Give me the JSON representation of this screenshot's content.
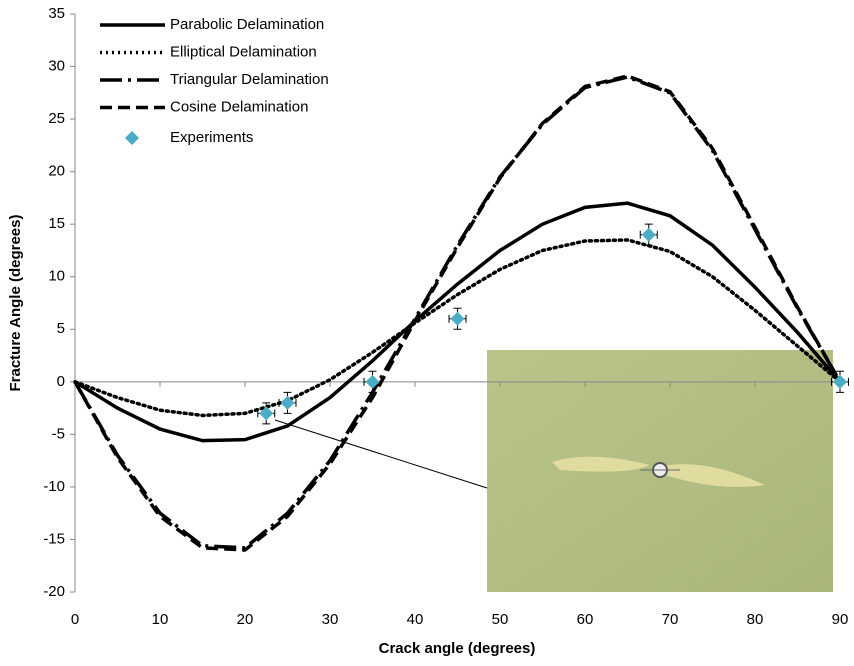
{
  "chart_data": {
    "type": "line",
    "x_label": "Crack  angle (degrees)",
    "y_label": "Fracture Angle (degrees)",
    "x": [
      0,
      5,
      10,
      15,
      20,
      25,
      30,
      35,
      40,
      45,
      50,
      55,
      60,
      65,
      70,
      75,
      80,
      85,
      90
    ],
    "series": [
      {
        "name": "Parabolic Delamination",
        "color": "#000000",
        "dash": "solid",
        "values": [
          0,
          -2.5,
          -4.5,
          -5.6,
          -5.5,
          -4.2,
          -1.5,
          2,
          5.8,
          9.3,
          12.5,
          15,
          16.6,
          17,
          15.8,
          13,
          9,
          4.7,
          0
        ]
      },
      {
        "name": "Elliptical Delamination",
        "color": "#000000",
        "dash": "dot",
        "values": [
          0,
          -1.5,
          -2.7,
          -3.2,
          -3,
          -1.8,
          0.2,
          2.8,
          5.6,
          8.3,
          10.7,
          12.5,
          13.4,
          13.5,
          12.4,
          10,
          6.8,
          3.4,
          0
        ]
      },
      {
        "name": "Triangular Delamination",
        "color": "#000000",
        "dash": "dashdot",
        "values": [
          0,
          -7,
          -12.5,
          -15.6,
          -15.8,
          -12.5,
          -7.5,
          -1,
          6,
          13,
          19.5,
          24.5,
          28,
          29,
          27.5,
          22,
          14.5,
          7,
          0
        ]
      },
      {
        "name": "Cosine Delamination",
        "color": "#000000",
        "dash": "dash",
        "values": [
          0,
          -7.2,
          -12.8,
          -15.8,
          -16,
          -12.8,
          -7.8,
          -1.5,
          5.8,
          12.8,
          19.4,
          24.6,
          28.1,
          29.1,
          27.6,
          22.2,
          14.7,
          7.1,
          0
        ]
      }
    ],
    "points": {
      "name": "Experiments",
      "color": "#4bacc6",
      "x": [
        22.5,
        25,
        35,
        45,
        67.5,
        90
      ],
      "values": [
        -3,
        -2,
        0,
        6,
        14,
        0
      ],
      "xerr": [
        1,
        1,
        1,
        1,
        1,
        1
      ],
      "yerr": [
        1,
        1,
        1,
        1,
        1,
        1
      ]
    },
    "xlim": [
      0,
      90
    ],
    "ylim": [
      -20,
      35
    ],
    "xticks": [
      0,
      10,
      20,
      30,
      40,
      50,
      60,
      70,
      80,
      90
    ],
    "yticks": [
      -20,
      -15,
      -10,
      -5,
      0,
      5,
      10,
      15,
      20,
      25,
      30,
      35
    ],
    "grid": false
  }
}
